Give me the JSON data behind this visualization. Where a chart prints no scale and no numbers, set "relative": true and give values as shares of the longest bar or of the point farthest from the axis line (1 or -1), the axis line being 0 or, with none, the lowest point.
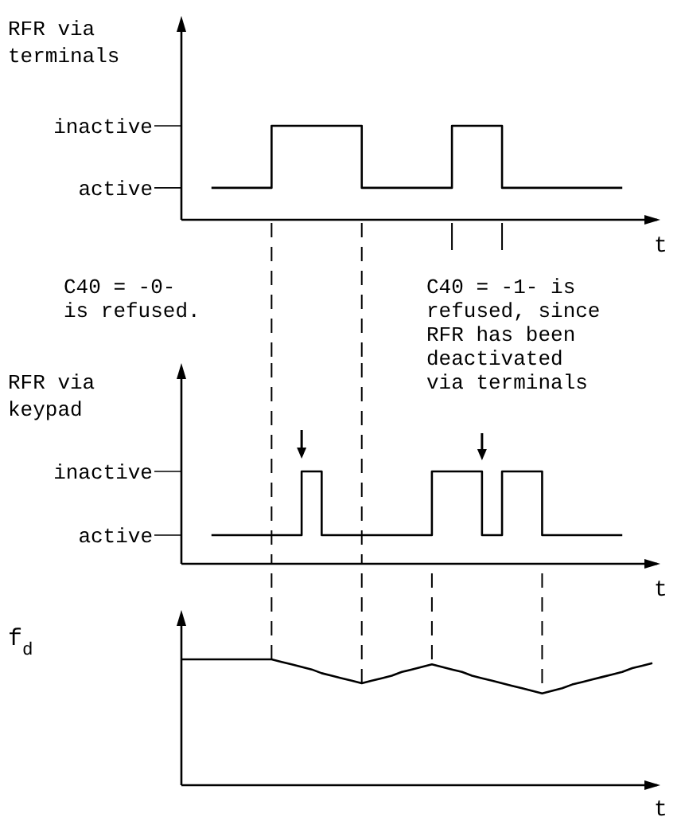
{
  "chart_data": [
    {
      "type": "step",
      "ylabel": "RFR via terminals",
      "xlabel": "t",
      "categories": [
        null,
        null,
        null,
        null,
        null,
        null,
        null,
        null,
        null,
        null,
        null,
        null,
        null,
        null,
        null,
        null,
        null,
        null,
        null,
        null,
        null,
        null,
        null,
        null,
        null,
        null,
        null,
        null,
        null,
        null,
        null,
        null,
        null,
        null,
        null,
        null,
        null,
        null,
        null,
        null,
        null,
        null,
        null,
        null,
        null,
        null,
        null,
        null
      ],
      "relative": true,
      "series": [
        {
          "color": "#000000",
          "values": [
            null,
            null,
            null,
            0.34,
            0.34,
            0.34,
            0.34,
            0.34,
            0.34,
            1,
            1,
            1,
            1,
            1,
            1,
            1,
            1,
            1,
            0.34,
            0.34,
            0.34,
            0.34,
            0.34,
            0.34,
            0.34,
            0.34,
            0.34,
            1,
            1,
            1,
            1,
            1,
            0.34,
            0.34,
            0.34,
            0.34,
            0.34,
            0.34,
            0.34,
            0.34,
            0.34,
            0.34,
            0.34,
            0.34,
            0.34,
            null,
            null,
            null
          ]
        }
      ],
      "annotations": [
        "inactive",
        "active",
        "C40 = -0- is refused.",
        "C40 = -1- is refused, since RFR has been deactivated via terminals"
      ]
    },
    {
      "type": "step",
      "ylabel": "RFR via keypad",
      "xlabel": "t",
      "categories": [
        null,
        null,
        null,
        null,
        null,
        null,
        null,
        null,
        null,
        null,
        null,
        null,
        null,
        null,
        null,
        null,
        null,
        null,
        null,
        null,
        null,
        null,
        null,
        null,
        null,
        null,
        null,
        null,
        null,
        null,
        null,
        null,
        null,
        null,
        null,
        null,
        null,
        null,
        null,
        null,
        null,
        null,
        null,
        null,
        null,
        null,
        null,
        null
      ],
      "relative": true,
      "series": [
        {
          "color": "#000000",
          "values": [
            null,
            null,
            null,
            0.31,
            0.31,
            0.31,
            0.31,
            0.31,
            0.31,
            0.31,
            0.31,
            0.31,
            1,
            1,
            0.31,
            0.31,
            0.31,
            0.31,
            0.31,
            0.31,
            0.31,
            0.31,
            0.31,
            0.31,
            0.31,
            1,
            1,
            1,
            1,
            1,
            0.31,
            0.31,
            1,
            1,
            1,
            1,
            0.31,
            0.31,
            0.31,
            0.31,
            0.31,
            0.31,
            0.31,
            0.31,
            0.31,
            null,
            null,
            null
          ]
        }
      ],
      "annotations": [
        "inactive",
        "active"
      ]
    },
    {
      "type": "line",
      "ylabel": "f$_{d}$",
      "xlabel": "t",
      "categories": [
        null,
        null,
        null,
        null,
        null,
        null,
        null,
        null,
        null,
        null,
        null,
        null,
        null,
        null,
        null,
        null,
        null,
        null,
        null,
        null,
        null,
        null,
        null,
        null,
        null,
        null,
        null,
        null,
        null,
        null,
        null,
        null,
        null,
        null,
        null,
        null,
        null,
        null,
        null,
        null,
        null,
        null,
        null,
        null,
        null,
        null,
        null,
        null
      ],
      "relative": true,
      "series": [
        {
          "color": "#000000",
          "values": [
            1,
            1,
            1,
            1,
            1,
            1,
            1,
            1,
            1,
            1,
            0.98,
            0.96,
            0.94,
            0.92,
            0.89,
            0.87,
            0.85,
            0.83,
            0.81,
            0.83,
            0.85,
            0.87,
            0.9,
            0.92,
            0.94,
            0.96,
            0.94,
            0.92,
            0.9,
            0.87,
            0.85,
            0.83,
            0.81,
            0.79,
            0.77,
            0.75,
            0.73,
            0.75,
            0.77,
            0.8,
            0.82,
            0.84,
            0.86,
            0.88,
            0.9,
            0.93,
            0.95,
            0.97
          ]
        }
      ]
    }
  ]
}
